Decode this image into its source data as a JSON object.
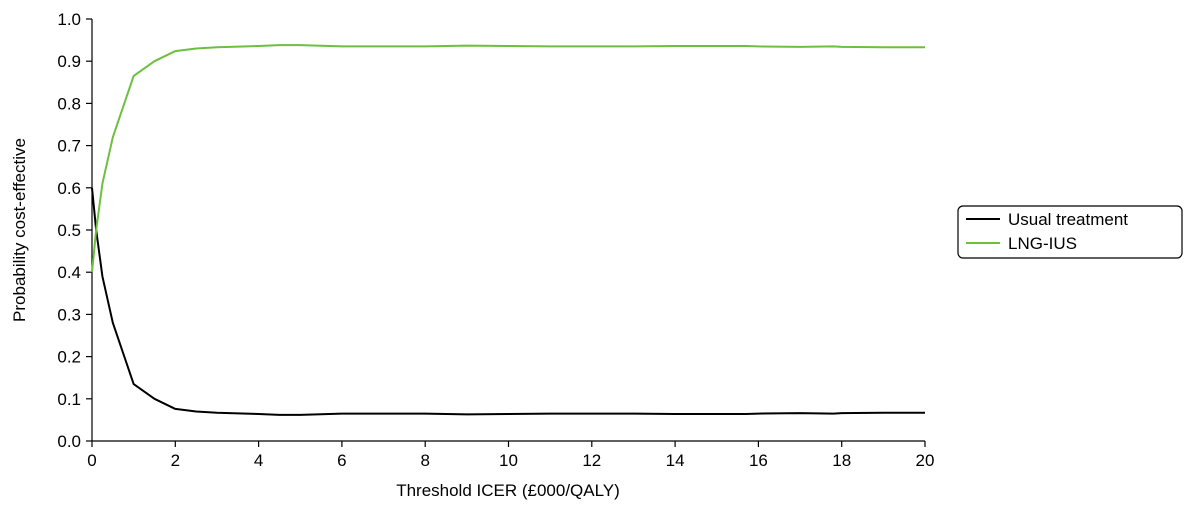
{
  "chart_data": {
    "type": "line",
    "title": "",
    "xlabel": "Threshold ICER (£000/QALY)",
    "ylabel": "Probability cost-effective",
    "xlim": [
      0,
      20
    ],
    "ylim": [
      0,
      1.0
    ],
    "x_ticks": [
      "0",
      "2",
      "4",
      "6",
      "8",
      "10",
      "12",
      "14",
      "16",
      "18",
      "20"
    ],
    "y_ticks": [
      "0.0",
      "0.1",
      "0.2",
      "0.3",
      "0.4",
      "0.5",
      "0.6",
      "0.7",
      "0.8",
      "0.9",
      "1.0"
    ],
    "grid": false,
    "legend_position": "right",
    "series": [
      {
        "name": "Usual treatment",
        "color": "#000000",
        "x": [
          0,
          0.1,
          0.25,
          0.5,
          1,
          1.5,
          2,
          2.5,
          3,
          4,
          4.5,
          5,
          6,
          7,
          8,
          9,
          10,
          11,
          12,
          13,
          14,
          15,
          15.7,
          16,
          17,
          17.8,
          18,
          19,
          20
        ],
        "y": [
          0.6,
          0.5,
          0.39,
          0.28,
          0.135,
          0.1,
          0.076,
          0.07,
          0.067,
          0.064,
          0.062,
          0.062,
          0.065,
          0.065,
          0.065,
          0.063,
          0.064,
          0.065,
          0.065,
          0.065,
          0.064,
          0.064,
          0.064,
          0.065,
          0.066,
          0.065,
          0.066,
          0.067,
          0.067
        ]
      },
      {
        "name": "LNG-IUS",
        "color": "#6cbf3f",
        "x": [
          0,
          0.1,
          0.25,
          0.5,
          1,
          1.5,
          2,
          2.5,
          3,
          4,
          4.5,
          5,
          6,
          7,
          8,
          9,
          10,
          11,
          12,
          13,
          14,
          15,
          15.7,
          16,
          17,
          17.8,
          18,
          19,
          20
        ],
        "y": [
          0.4,
          0.5,
          0.61,
          0.72,
          0.865,
          0.9,
          0.924,
          0.93,
          0.933,
          0.936,
          0.938,
          0.938,
          0.935,
          0.935,
          0.935,
          0.937,
          0.936,
          0.935,
          0.935,
          0.935,
          0.936,
          0.936,
          0.936,
          0.935,
          0.934,
          0.935,
          0.934,
          0.933,
          0.933
        ]
      }
    ]
  }
}
